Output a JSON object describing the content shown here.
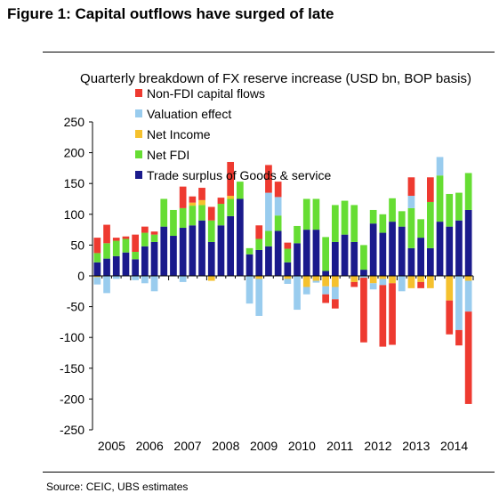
{
  "figure": {
    "title": "Figure 1: Capital outflows have surged of late",
    "source": "Source:  CEIC, UBS estimates"
  },
  "chart_data": {
    "type": "bar",
    "stacked": true,
    "title": "Quarterly breakdown of FX reserve increase (USD bn, BOP basis)",
    "xlabel": "",
    "ylabel": "",
    "ylim": [
      -250,
      250
    ],
    "yticks": [
      -250,
      -200,
      -150,
      -100,
      -50,
      0,
      50,
      100,
      150,
      200,
      250
    ],
    "year_labels": [
      "2005",
      "2006",
      "2007",
      "2008",
      "2009",
      "2010",
      "2011",
      "2012",
      "2013",
      "2014"
    ],
    "grid": false,
    "legend_position": "top-left",
    "categories": [
      "2005Q1",
      "2005Q2",
      "2005Q3",
      "2005Q4",
      "2006Q1",
      "2006Q2",
      "2006Q3",
      "2006Q4",
      "2007Q1",
      "2007Q2",
      "2007Q3",
      "2007Q4",
      "2008Q1",
      "2008Q2",
      "2008Q3",
      "2008Q4",
      "2009Q1",
      "2009Q2",
      "2009Q3",
      "2009Q4",
      "2010Q1",
      "2010Q2",
      "2010Q3",
      "2010Q4",
      "2011Q1",
      "2011Q2",
      "2011Q3",
      "2011Q4",
      "2012Q1",
      "2012Q2",
      "2012Q3",
      "2012Q4",
      "2013Q1",
      "2013Q2",
      "2013Q3",
      "2013Q4",
      "2014Q1",
      "2014Q2",
      "2014Q3",
      "2014Q4"
    ],
    "series": [
      {
        "name": "Trade surplus of Goods & service",
        "color": "#1a1a8c",
        "values": [
          22,
          28,
          32,
          38,
          27,
          48,
          55,
          80,
          65,
          78,
          82,
          90,
          55,
          82,
          97,
          125,
          35,
          42,
          48,
          73,
          22,
          53,
          75,
          75,
          8,
          55,
          67,
          55,
          10,
          85,
          70,
          88,
          80,
          45,
          62,
          45,
          88,
          80,
          90,
          107
        ]
      },
      {
        "name": "Net FDI",
        "color": "#66dd33",
        "values": [
          15,
          25,
          25,
          22,
          12,
          22,
          12,
          45,
          42,
          32,
          32,
          25,
          35,
          35,
          28,
          28,
          10,
          18,
          25,
          25,
          22,
          28,
          50,
          50,
          55,
          60,
          55,
          60,
          40,
          22,
          30,
          38,
          25,
          65,
          30,
          75,
          75,
          53,
          45,
          60
        ]
      },
      {
        "name": "Net Income",
        "color": "#f5c12e",
        "values": [
          -2,
          0,
          0,
          0,
          0,
          0,
          0,
          0,
          0,
          0,
          5,
          8,
          -8,
          0,
          5,
          0,
          0,
          -5,
          0,
          0,
          -5,
          0,
          -18,
          -8,
          -17,
          -18,
          0,
          -10,
          0,
          -12,
          -5,
          -12,
          0,
          -20,
          -10,
          -20,
          0,
          -40,
          0,
          -8
        ]
      },
      {
        "name": "Valuation effect",
        "color": "#99ccee",
        "values": [
          -12,
          -28,
          -5,
          0,
          -7,
          -12,
          -25,
          0,
          0,
          -10,
          0,
          0,
          0,
          0,
          0,
          0,
          -45,
          -60,
          62,
          30,
          -8,
          -55,
          -12,
          -3,
          -13,
          -20,
          0,
          0,
          -3,
          -10,
          -10,
          0,
          -25,
          20,
          0,
          0,
          30,
          0,
          -88,
          -50
        ]
      },
      {
        "name": "Non-FDI capital flows",
        "color": "#ee3a30",
        "values": [
          25,
          30,
          5,
          4,
          28,
          10,
          5,
          0,
          0,
          35,
          10,
          20,
          22,
          10,
          55,
          0,
          0,
          22,
          45,
          25,
          10,
          0,
          0,
          0,
          -14,
          -15,
          0,
          -8,
          -105,
          0,
          -100,
          -100,
          0,
          30,
          -10,
          40,
          0,
          -55,
          -25,
          -150
        ]
      }
    ],
    "series_color_hex": {
      "non_fdi": "#ee3a30",
      "valuation": "#99ccee",
      "net_income": "#f5c12e",
      "net_fdi": "#66dd33",
      "trade": "#1a1a8c"
    }
  }
}
